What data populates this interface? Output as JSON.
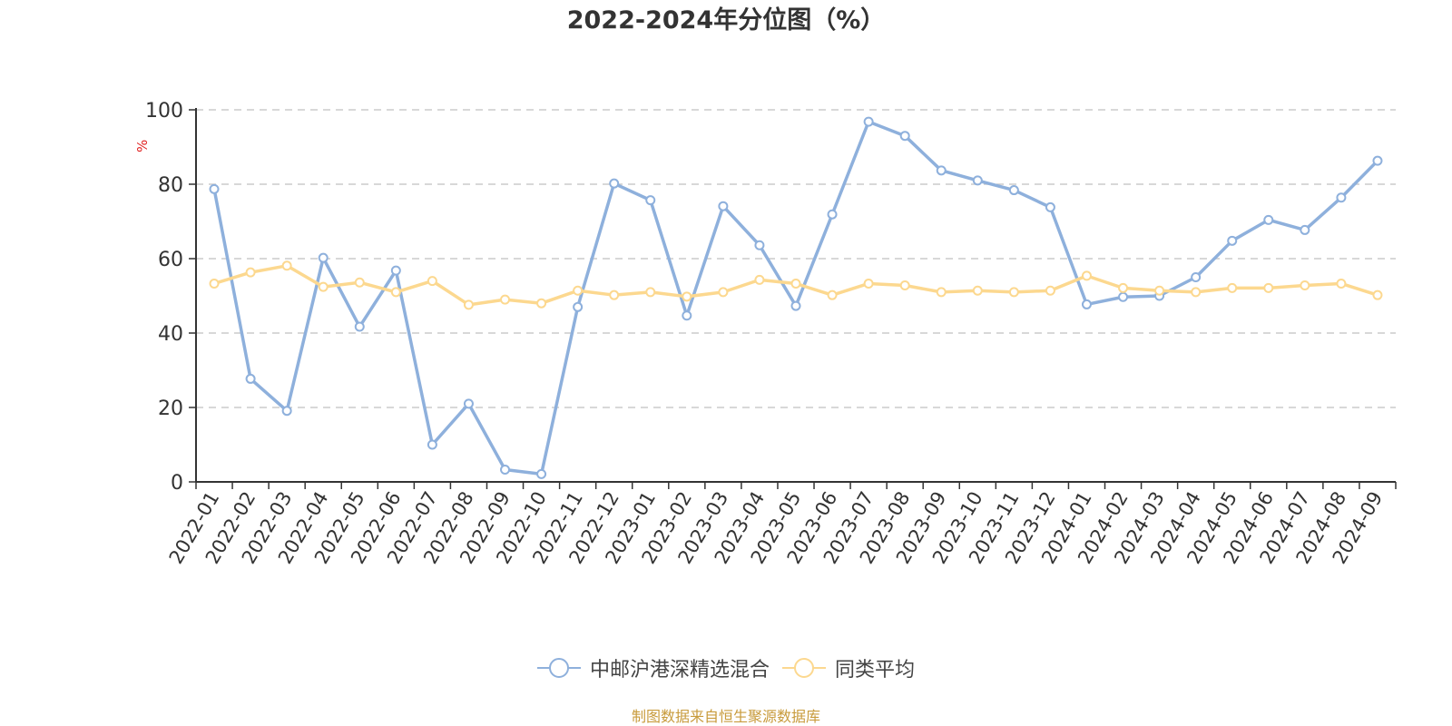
{
  "title": "2022-2024年分位图（%）",
  "y_axis_unit": "%",
  "legend": {
    "items": [
      {
        "label": "中邮沪港深精选混合",
        "color": "#8eb0dc"
      },
      {
        "label": "同类平均",
        "color": "#fcd88f"
      }
    ]
  },
  "source": "制图数据来自恒生聚源数据库",
  "chart_data": {
    "type": "line",
    "title": "2022-2024年分位图（%）",
    "xlabel": "",
    "ylabel": "%",
    "ylim": [
      0,
      100
    ],
    "yticks": [
      0,
      20,
      40,
      60,
      80,
      100
    ],
    "grid": true,
    "legend_position": "bottom",
    "categories": [
      "2022-01",
      "2022-02",
      "2022-03",
      "2022-04",
      "2022-05",
      "2022-06",
      "2022-07",
      "2022-08",
      "2022-09",
      "2022-10",
      "2022-11",
      "2022-12",
      "2023-01",
      "2023-02",
      "2023-03",
      "2023-04",
      "2023-05",
      "2023-06",
      "2023-07",
      "2023-08",
      "2023-09",
      "2023-10",
      "2023-11",
      "2023-12",
      "2024-01",
      "2024-02",
      "2024-03",
      "2024-04",
      "2024-05",
      "2024-06",
      "2024-07",
      "2024-08",
      "2024-09"
    ],
    "series": [
      {
        "name": "中邮沪港深精选混合",
        "color": "#8eb0dc",
        "values": [
          78.7,
          27.7,
          19.1,
          60.2,
          41.7,
          56.8,
          10.0,
          21.0,
          3.3,
          2.1,
          47.0,
          80.2,
          75.7,
          44.7,
          74.1,
          63.6,
          47.3,
          71.9,
          96.8,
          93.0,
          83.7,
          81.0,
          78.4,
          73.8,
          47.7,
          49.7,
          50.0,
          55.0,
          64.8,
          70.4,
          67.7,
          76.4,
          86.3
        ]
      },
      {
        "name": "同类平均",
        "color": "#fcd88f",
        "values": [
          53.3,
          56.3,
          58.1,
          52.4,
          53.6,
          51.0,
          54.0,
          47.6,
          49.0,
          48.0,
          51.4,
          50.2,
          51.0,
          49.8,
          51.0,
          54.3,
          53.3,
          50.2,
          53.3,
          52.8,
          51.0,
          51.4,
          51.0,
          51.4,
          55.4,
          52.1,
          51.4,
          51.0,
          52.1,
          52.1,
          52.8,
          53.3,
          50.2
        ]
      }
    ]
  }
}
